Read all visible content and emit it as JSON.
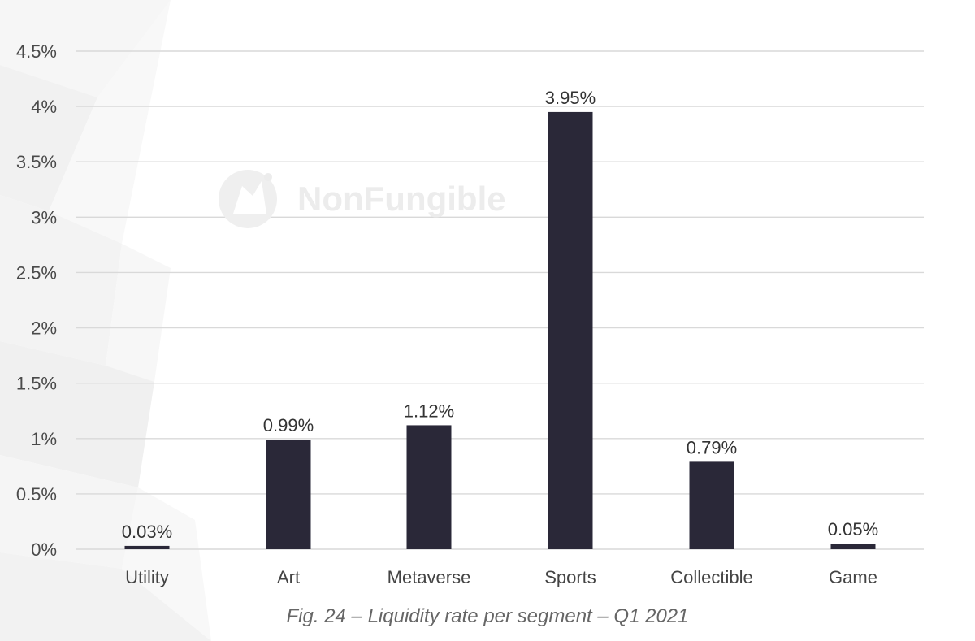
{
  "chart_data": {
    "type": "bar",
    "categories": [
      "Utility",
      "Art",
      "Metaverse",
      "Sports",
      "Collectible",
      "Game"
    ],
    "values": [
      0.03,
      0.99,
      1.12,
      3.95,
      0.79,
      0.05
    ],
    "value_labels": [
      "0.03%",
      "0.99%",
      "1.12%",
      "3.95%",
      "0.79%",
      "0.05%"
    ],
    "ylim": [
      0,
      4.5
    ],
    "yticks": [
      0,
      0.5,
      1,
      1.5,
      2,
      2.5,
      3,
      3.5,
      4,
      4.5
    ],
    "ytick_labels": [
      "0%",
      "0.5%",
      "1%",
      "1.5%",
      "2%",
      "2.5%",
      "3%",
      "3.5%",
      "4%",
      "4.5%"
    ],
    "xlabel": "",
    "ylabel": "",
    "grid": true,
    "legend": "none",
    "bar_color": "#2a2838",
    "gridline_color": "#d9d9d9"
  },
  "caption": "Fig. 24 – Liquidity rate per segment – Q1 2021",
  "watermark": {
    "text": "NonFungible",
    "icon": "nonfungible-logo-icon"
  }
}
